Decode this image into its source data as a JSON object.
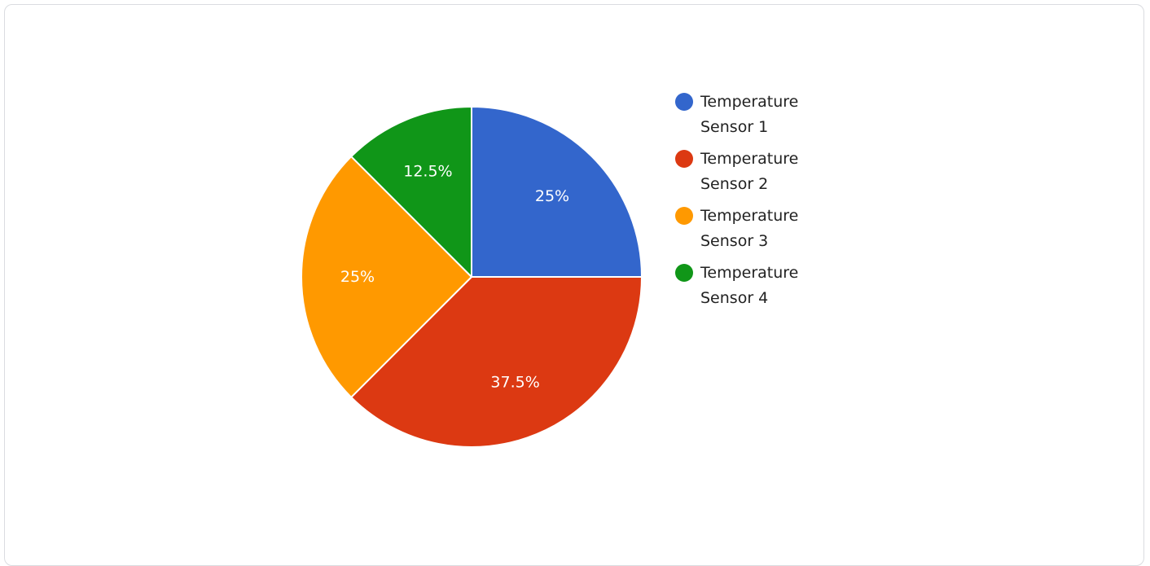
{
  "chart_data": {
    "type": "pie",
    "categories": [
      "Temperature Sensor 1",
      "Temperature Sensor 2",
      "Temperature Sensor 3",
      "Temperature Sensor 4"
    ],
    "values": [
      25,
      37.5,
      25,
      12.5
    ],
    "value_labels": [
      "25%",
      "37.5%",
      "25%",
      "12.5%"
    ],
    "colors": [
      "#3366cc",
      "#dc3912",
      "#ff9900",
      "#109618"
    ],
    "legend": {
      "position": "right",
      "entries": [
        {
          "line1": "Temperature",
          "line2": "Sensor 1"
        },
        {
          "line1": "Temperature",
          "line2": "Sensor 2"
        },
        {
          "line1": "Temperature",
          "line2": "Sensor 3"
        },
        {
          "line1": "Temperature",
          "line2": "Sensor 4"
        }
      ]
    },
    "start_angle": "12 o'clock",
    "direction": "clockwise"
  }
}
